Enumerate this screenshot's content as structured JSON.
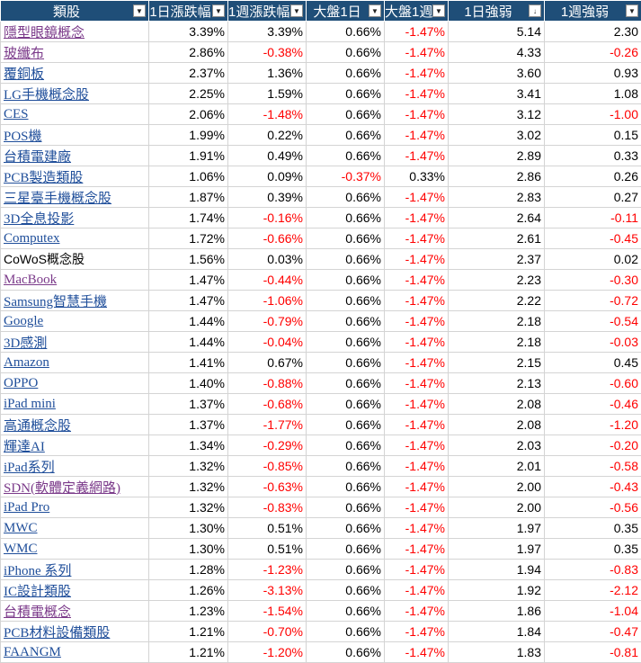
{
  "headers": [
    {
      "label": "類股",
      "icon": "filter-dropdown-icon",
      "glyph": "▼"
    },
    {
      "label": "1日漲跌幅",
      "icon": "filter-dropdown-icon",
      "glyph": "▼"
    },
    {
      "label": "1週漲跌幅",
      "icon": "filter-dropdown-icon",
      "glyph": "▼"
    },
    {
      "label": "大盤1日",
      "icon": "filter-dropdown-icon",
      "glyph": "▼"
    },
    {
      "label": "大盤1週",
      "icon": "filter-dropdown-icon",
      "glyph": "▼"
    },
    {
      "label": "1日強弱",
      "icon": "sort-descending-filter-icon",
      "glyph": "↓"
    },
    {
      "label": "1週強弱",
      "icon": "filter-dropdown-icon",
      "glyph": "▼"
    }
  ],
  "colors": {
    "header_bg": "#1f4e78",
    "header_text": "#ffffff",
    "link": "#1f4e9a",
    "visited_link": "#7b3a8a",
    "negative": "#ff0000",
    "grid": "#d4d4d4"
  },
  "rows": [
    {
      "name": "隱型眼鏡概念",
      "style": "visited",
      "d1": "3.39%",
      "w1": "3.39%",
      "m1": "0.66%",
      "mw": "-1.47%",
      "s1": "5.14",
      "sw": "2.30"
    },
    {
      "name": "玻纖布",
      "style": "visited",
      "d1": "2.86%",
      "w1": "-0.38%",
      "m1": "0.66%",
      "mw": "-1.47%",
      "s1": "4.33",
      "sw": "-0.26"
    },
    {
      "name": "覆銅板",
      "style": "link",
      "d1": "2.37%",
      "w1": "1.36%",
      "m1": "0.66%",
      "mw": "-1.47%",
      "s1": "3.60",
      "sw": "0.93"
    },
    {
      "name": "LG手機概念股",
      "style": "link",
      "d1": "2.25%",
      "w1": "1.59%",
      "m1": "0.66%",
      "mw": "-1.47%",
      "s1": "3.41",
      "sw": "1.08"
    },
    {
      "name": "CES",
      "style": "link",
      "d1": "2.06%",
      "w1": "-1.48%",
      "m1": "0.66%",
      "mw": "-1.47%",
      "s1": "3.12",
      "sw": "-1.00"
    },
    {
      "name": "POS機",
      "style": "link",
      "d1": "1.99%",
      "w1": "0.22%",
      "m1": "0.66%",
      "mw": "-1.47%",
      "s1": "3.02",
      "sw": "0.15"
    },
    {
      "name": "台積電建廠",
      "style": "link",
      "d1": "1.91%",
      "w1": "0.49%",
      "m1": "0.66%",
      "mw": "-1.47%",
      "s1": "2.89",
      "sw": "0.33"
    },
    {
      "name": "PCB製造類股",
      "style": "link",
      "d1": "1.06%",
      "w1": "0.09%",
      "m1": "-0.37%",
      "mw": "0.33%",
      "s1": "2.86",
      "sw": "0.26"
    },
    {
      "name": "三星臺手機概念股",
      "style": "link",
      "d1": "1.87%",
      "w1": "0.39%",
      "m1": "0.66%",
      "mw": "-1.47%",
      "s1": "2.83",
      "sw": "0.27"
    },
    {
      "name": "3D全息投影",
      "style": "link",
      "d1": "1.74%",
      "w1": "-0.16%",
      "m1": "0.66%",
      "mw": "-1.47%",
      "s1": "2.64",
      "sw": "-0.11"
    },
    {
      "name": "Computex",
      "style": "link",
      "d1": "1.72%",
      "w1": "-0.66%",
      "m1": "0.66%",
      "mw": "-1.47%",
      "s1": "2.61",
      "sw": "-0.45"
    },
    {
      "name": "CoWoS概念股",
      "style": "plain",
      "d1": "1.56%",
      "w1": "0.03%",
      "m1": "0.66%",
      "mw": "-1.47%",
      "s1": "2.37",
      "sw": "0.02"
    },
    {
      "name": "MacBook",
      "style": "visited",
      "d1": "1.47%",
      "w1": "-0.44%",
      "m1": "0.66%",
      "mw": "-1.47%",
      "s1": "2.23",
      "sw": "-0.30"
    },
    {
      "name": "Samsung智慧手機",
      "style": "link",
      "d1": "1.47%",
      "w1": "-1.06%",
      "m1": "0.66%",
      "mw": "-1.47%",
      "s1": "2.22",
      "sw": "-0.72"
    },
    {
      "name": "Google",
      "style": "link",
      "d1": "1.44%",
      "w1": "-0.79%",
      "m1": "0.66%",
      "mw": "-1.47%",
      "s1": "2.18",
      "sw": "-0.54"
    },
    {
      "name": "3D感測",
      "style": "link",
      "d1": "1.44%",
      "w1": "-0.04%",
      "m1": "0.66%",
      "mw": "-1.47%",
      "s1": "2.18",
      "sw": "-0.03"
    },
    {
      "name": "Amazon",
      "style": "link",
      "d1": "1.41%",
      "w1": "0.67%",
      "m1": "0.66%",
      "mw": "-1.47%",
      "s1": "2.15",
      "sw": "0.45"
    },
    {
      "name": "OPPO",
      "style": "link",
      "d1": "1.40%",
      "w1": "-0.88%",
      "m1": "0.66%",
      "mw": "-1.47%",
      "s1": "2.13",
      "sw": "-0.60"
    },
    {
      "name": "iPad mini",
      "style": "link",
      "d1": "1.37%",
      "w1": "-0.68%",
      "m1": "0.66%",
      "mw": "-1.47%",
      "s1": "2.08",
      "sw": "-0.46"
    },
    {
      "name": "高通概念股",
      "style": "link",
      "d1": "1.37%",
      "w1": "-1.77%",
      "m1": "0.66%",
      "mw": "-1.47%",
      "s1": "2.08",
      "sw": "-1.20"
    },
    {
      "name": "輝達AI",
      "style": "link",
      "d1": "1.34%",
      "w1": "-0.29%",
      "m1": "0.66%",
      "mw": "-1.47%",
      "s1": "2.03",
      "sw": "-0.20"
    },
    {
      "name": "iPad系列",
      "style": "link",
      "d1": "1.32%",
      "w1": "-0.85%",
      "m1": "0.66%",
      "mw": "-1.47%",
      "s1": "2.01",
      "sw": "-0.58"
    },
    {
      "name": "SDN(軟體定義網路)",
      "style": "visited",
      "d1": "1.32%",
      "w1": "-0.63%",
      "m1": "0.66%",
      "mw": "-1.47%",
      "s1": "2.00",
      "sw": "-0.43"
    },
    {
      "name": "iPad Pro",
      "style": "link",
      "d1": "1.32%",
      "w1": "-0.83%",
      "m1": "0.66%",
      "mw": "-1.47%",
      "s1": "2.00",
      "sw": "-0.56"
    },
    {
      "name": "MWC",
      "style": "link",
      "d1": "1.30%",
      "w1": "0.51%",
      "m1": "0.66%",
      "mw": "-1.47%",
      "s1": "1.97",
      "sw": "0.35"
    },
    {
      "name": "WMC",
      "style": "link",
      "d1": "1.30%",
      "w1": "0.51%",
      "m1": "0.66%",
      "mw": "-1.47%",
      "s1": "1.97",
      "sw": "0.35"
    },
    {
      "name": "iPhone 系列",
      "style": "link",
      "d1": "1.28%",
      "w1": "-1.23%",
      "m1": "0.66%",
      "mw": "-1.47%",
      "s1": "1.94",
      "sw": "-0.83"
    },
    {
      "name": "IC設計類股",
      "style": "link",
      "d1": "1.26%",
      "w1": "-3.13%",
      "m1": "0.66%",
      "mw": "-1.47%",
      "s1": "1.92",
      "sw": "-2.12"
    },
    {
      "name": "台積電概念",
      "style": "visited",
      "d1": "1.23%",
      "w1": "-1.54%",
      "m1": "0.66%",
      "mw": "-1.47%",
      "s1": "1.86",
      "sw": "-1.04"
    },
    {
      "name": "PCB材料設備類股",
      "style": "link",
      "d1": "1.21%",
      "w1": "-0.70%",
      "m1": "0.66%",
      "mw": "-1.47%",
      "s1": "1.84",
      "sw": "-0.47"
    },
    {
      "name": "FAANGM",
      "style": "link",
      "d1": "1.21%",
      "w1": "-1.20%",
      "m1": "0.66%",
      "mw": "-1.47%",
      "s1": "1.83",
      "sw": "-0.81"
    }
  ]
}
